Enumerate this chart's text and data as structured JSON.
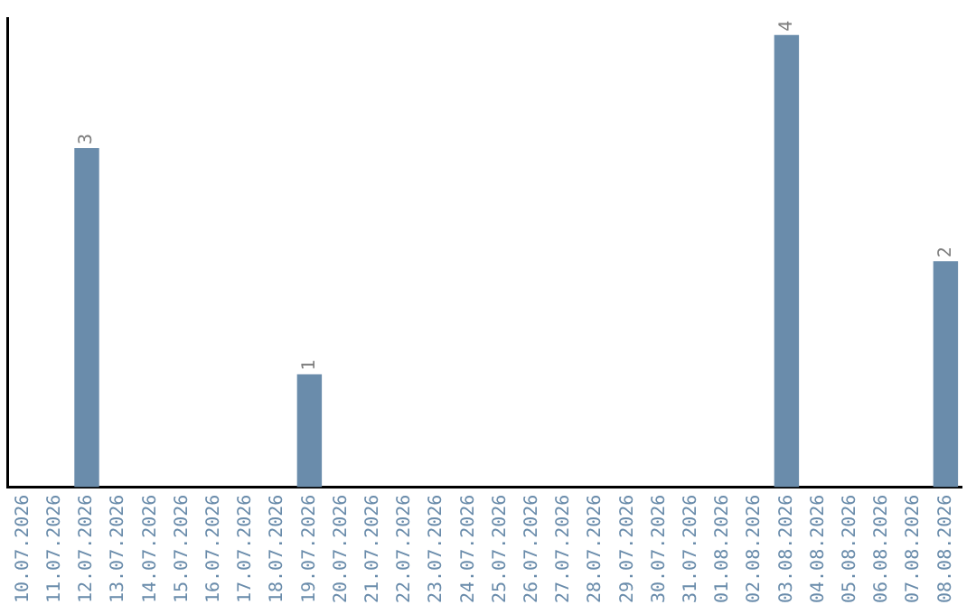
{
  "chart_data": {
    "type": "bar",
    "categories": [
      "10.07.2026",
      "11.07.2026",
      "12.07.2026",
      "13.07.2026",
      "14.07.2026",
      "15.07.2026",
      "16.07.2026",
      "17.07.2026",
      "18.07.2026",
      "19.07.2026",
      "20.07.2026",
      "21.07.2026",
      "22.07.2026",
      "23.07.2026",
      "24.07.2026",
      "25.07.2026",
      "26.07.2026",
      "27.07.2026",
      "28.07.2026",
      "29.07.2026",
      "30.07.2026",
      "31.07.2026",
      "01.08.2026",
      "02.08.2026",
      "03.08.2026",
      "04.08.2026",
      "05.08.2026",
      "06.08.2026",
      "07.08.2026",
      "08.08.2026"
    ],
    "values": [
      0,
      0,
      3,
      0,
      0,
      0,
      0,
      0,
      0,
      1,
      0,
      0,
      0,
      0,
      0,
      0,
      0,
      0,
      0,
      0,
      0,
      0,
      0,
      0,
      4,
      0,
      0,
      0,
      0,
      2
    ],
    "value_labels": [
      null,
      null,
      "3",
      null,
      null,
      null,
      null,
      null,
      null,
      "1",
      null,
      null,
      null,
      null,
      null,
      null,
      null,
      null,
      null,
      null,
      null,
      null,
      null,
      null,
      "4",
      null,
      null,
      null,
      null,
      "2"
    ],
    "color": "#6a8cab",
    "ylim": [
      0,
      4.15
    ],
    "tick_labels": "x",
    "grid": false,
    "legend": false
  }
}
